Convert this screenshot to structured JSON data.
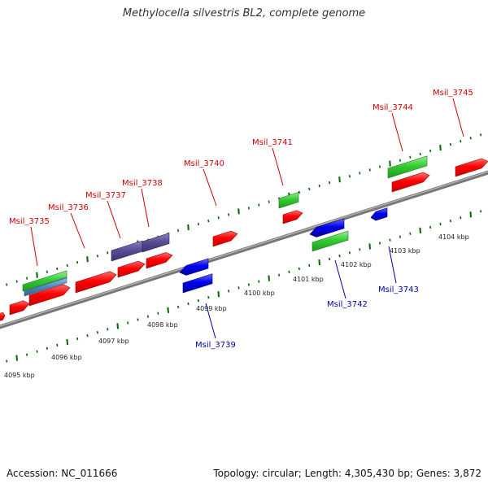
{
  "title": "Methylocella silvestris BL2, complete genome",
  "accession": "Accession: NC_011666",
  "summary": "Topology: circular; Length: 4,305,430 bp; Genes: 3,872",
  "colors": {
    "forward_cds": "#ff0000",
    "reverse_cds": "#0000ee",
    "rna": "#33cc33",
    "gene_region": "#5a4e96",
    "backbone": "#999999",
    "tick": "#006600",
    "forward_label": "#cc0000",
    "reverse_label": "#0000aa"
  },
  "scale_labels": [
    {
      "text": "4095 kbp"
    },
    {
      "text": "4096 kbp"
    },
    {
      "text": "4097 kbp"
    },
    {
      "text": "4098 kbp"
    },
    {
      "text": "4099 kbp"
    },
    {
      "text": "4100 kbp"
    },
    {
      "text": "4101 kbp"
    },
    {
      "text": "4102 kbp"
    },
    {
      "text": "4103 kbp"
    },
    {
      "text": "4104 kbp"
    }
  ],
  "gene_labels": [
    {
      "text": "Msil_3735",
      "strand": "forward"
    },
    {
      "text": "Msil_3736",
      "strand": "forward"
    },
    {
      "text": "Msil_3737",
      "strand": "forward"
    },
    {
      "text": "Msil_3738",
      "strand": "forward"
    },
    {
      "text": "Msil_3739",
      "strand": "reverse"
    },
    {
      "text": "Msil_3740",
      "strand": "forward"
    },
    {
      "text": "Msil_3741",
      "strand": "forward"
    },
    {
      "text": "Msil_3742",
      "strand": "reverse"
    },
    {
      "text": "Msil_3743",
      "strand": "reverse"
    },
    {
      "text": "Msil_3744",
      "strand": "forward"
    },
    {
      "text": "Msil_3745",
      "strand": "forward"
    }
  ]
}
